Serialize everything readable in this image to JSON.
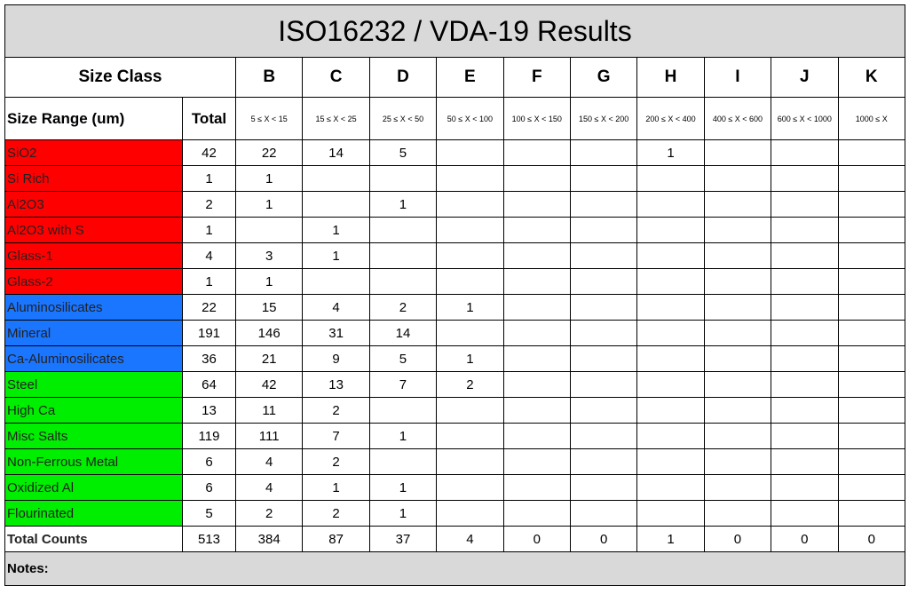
{
  "header": {
    "title": "ISO16232 / VDA-19 Results"
  },
  "table": {
    "class_header": "Size Class",
    "classes": [
      "B",
      "C",
      "D",
      "E",
      "F",
      "G",
      "H",
      "I",
      "J",
      "K"
    ],
    "range_header": "Size Range (um)",
    "total_header": "Total",
    "ranges": [
      "5 ≤ X < 15",
      "15 ≤ X < 25",
      "25 ≤ X < 50",
      "50 ≤ X < 100",
      "100 ≤ X < 150",
      "150 ≤ X < 200",
      "200 ≤ X < 400",
      "400 ≤ X < 600",
      "600 ≤ X < 1000",
      "1000 ≤ X"
    ],
    "rows": [
      {
        "label": "SiO2",
        "color": "#ff0000",
        "cells": [
          42,
          22,
          14,
          5,
          null,
          null,
          null,
          1,
          null,
          null,
          null
        ]
      },
      {
        "label": "Si Rich",
        "color": "#ff0000",
        "cells": [
          1,
          1,
          null,
          null,
          null,
          null,
          null,
          null,
          null,
          null,
          null
        ]
      },
      {
        "label": "Al2O3",
        "color": "#ff0000",
        "cells": [
          2,
          1,
          null,
          1,
          null,
          null,
          null,
          null,
          null,
          null,
          null
        ]
      },
      {
        "label": "Al2O3 with S",
        "color": "#ff0000",
        "cells": [
          1,
          null,
          1,
          null,
          null,
          null,
          null,
          null,
          null,
          null,
          null
        ]
      },
      {
        "label": "Glass-1",
        "color": "#ff0000",
        "cells": [
          4,
          3,
          1,
          null,
          null,
          null,
          null,
          null,
          null,
          null,
          null
        ]
      },
      {
        "label": "Glass-2",
        "color": "#ff0000",
        "cells": [
          1,
          1,
          null,
          null,
          null,
          null,
          null,
          null,
          null,
          null,
          null
        ]
      },
      {
        "label": "Aluminosilicates",
        "color": "#1a75ff",
        "cells": [
          22,
          15,
          4,
          2,
          1,
          null,
          null,
          null,
          null,
          null,
          null
        ]
      },
      {
        "label": "Mineral",
        "color": "#1a75ff",
        "cells": [
          191,
          146,
          31,
          14,
          null,
          null,
          null,
          null,
          null,
          null,
          null
        ]
      },
      {
        "label": "Ca-Aluminosilicates",
        "color": "#1a75ff",
        "cells": [
          36,
          21,
          9,
          5,
          1,
          null,
          null,
          null,
          null,
          null,
          null
        ]
      },
      {
        "label": "Steel",
        "color": "#00ee00",
        "cells": [
          64,
          42,
          13,
          7,
          2,
          null,
          null,
          null,
          null,
          null,
          null
        ]
      },
      {
        "label": "High Ca",
        "color": "#00ee00",
        "cells": [
          13,
          11,
          2,
          null,
          null,
          null,
          null,
          null,
          null,
          null,
          null
        ]
      },
      {
        "label": "Misc Salts",
        "color": "#00ee00",
        "cells": [
          119,
          111,
          7,
          1,
          null,
          null,
          null,
          null,
          null,
          null,
          null
        ]
      },
      {
        "label": "Non-Ferrous Metal",
        "color": "#00ee00",
        "cells": [
          6,
          4,
          2,
          null,
          null,
          null,
          null,
          null,
          null,
          null,
          null
        ]
      },
      {
        "label": "Oxidized Al",
        "color": "#00ee00",
        "cells": [
          6,
          4,
          1,
          1,
          null,
          null,
          null,
          null,
          null,
          null,
          null
        ]
      },
      {
        "label": "Flourinated",
        "color": "#00ee00",
        "cells": [
          5,
          2,
          2,
          1,
          null,
          null,
          null,
          null,
          null,
          null,
          null
        ]
      }
    ],
    "totals": {
      "label": "Total Counts",
      "cells": [
        513,
        384,
        87,
        37,
        4,
        0,
        0,
        1,
        0,
        0,
        0
      ]
    }
  },
  "notes": "Notes:"
}
